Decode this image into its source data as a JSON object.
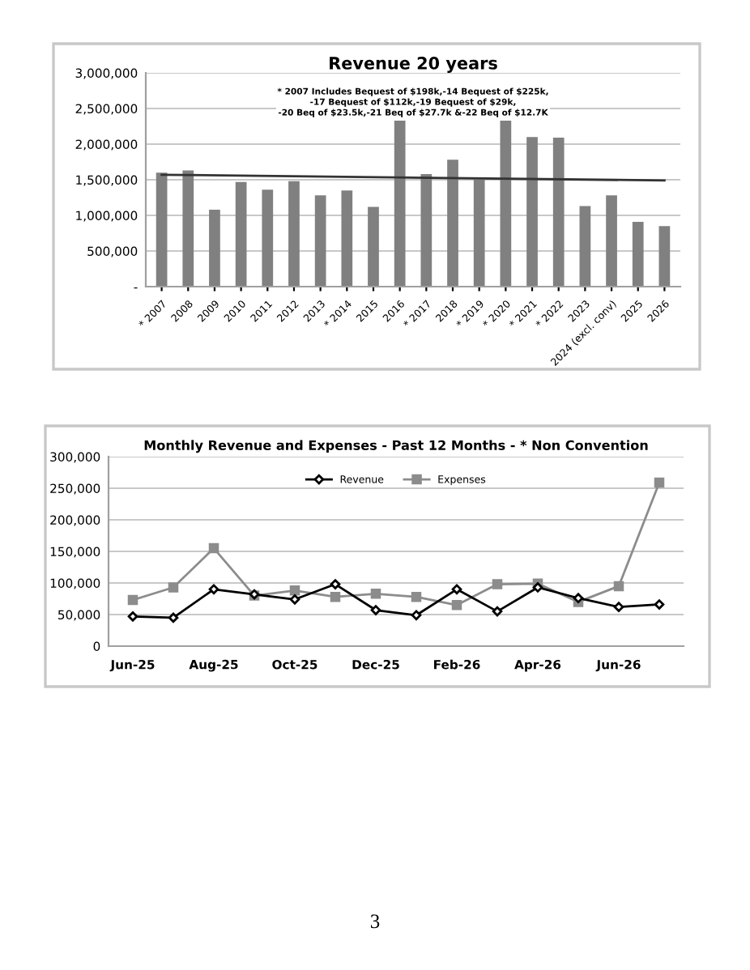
{
  "chart_data": [
    {
      "type": "bar",
      "title": "Revenue 20 years",
      "annotations": [
        "* 2007 Includes Bequest of $198k,-14 Bequest of $225k,\n-17 Bequest of $112k,-19 Bequest of $29k,\n-20 Beq of $23.5k,-21 Beq of $27.7k &-22 Beq of $12.7K"
      ],
      "categories": [
        "* 2007",
        "2008",
        "2009",
        "2010",
        "2011",
        "2012",
        "2013",
        "* 2014",
        "2015",
        "2016",
        "* 2017",
        "2018",
        "* 2019",
        "* 2020",
        "* 2021",
        "* 2022",
        "2023",
        "2024 (excl. conv)",
        "2025",
        "2026"
      ],
      "series": [
        {
          "type": "bar",
          "color": "#808080",
          "values": [
            1600000,
            1630000,
            1080000,
            1470000,
            1360000,
            1480000,
            1280000,
            1350000,
            1120000,
            2330000,
            1580000,
            1780000,
            1500000,
            2330000,
            2100000,
            2090000,
            1130000,
            1280000,
            910000,
            850000
          ]
        },
        {
          "type": "line",
          "color": "#333333",
          "values": [
            1570000,
            null,
            null,
            null,
            null,
            null,
            null,
            null,
            null,
            null,
            null,
            null,
            null,
            null,
            null,
            null,
            null,
            null,
            null,
            1490000
          ]
        }
      ],
      "ylim": [
        0,
        3000000
      ],
      "yticks": [
        {
          "value": 0,
          "label": "-"
        },
        {
          "value": 500000,
          "label": "500,000"
        },
        {
          "value": 1000000,
          "label": "1,000,000"
        },
        {
          "value": 1500000,
          "label": "1,500,000"
        },
        {
          "value": 2000000,
          "label": "2,000,000"
        },
        {
          "value": 2500000,
          "label": "2,500,000"
        },
        {
          "value": 3000000,
          "label": "3,000,000"
        }
      ],
      "grid": "y",
      "legend": false
    },
    {
      "type": "line",
      "title": "Monthly Revenue and Expenses - Past 12 Months - * Non Convention",
      "annotations": [
        "3"
      ],
      "categories": [
        "Jun-25",
        null,
        "Aug-25",
        null,
        "Oct-25",
        null,
        "Dec-25",
        null,
        "Feb-26",
        null,
        "Apr-26",
        null,
        "Jun-26",
        null
      ],
      "series": [
        {
          "name": "Revenue",
          "color": "#000000",
          "marker": "diamond",
          "values": [
            47000,
            45000,
            90000,
            82000,
            74000,
            98000,
            57000,
            49000,
            90000,
            55000,
            93000,
            76000,
            62000,
            66000
          ]
        },
        {
          "name": "Expenses",
          "color": "#8c8c8c",
          "marker": "square",
          "values": [
            73000,
            93000,
            155000,
            80000,
            88000,
            78000,
            83000,
            78000,
            65000,
            98000,
            99000,
            70000,
            95000,
            259000
          ]
        }
      ],
      "ylim": [
        0,
        300000
      ],
      "yticks": [
        {
          "value": 0,
          "label": "0"
        },
        {
          "value": 50000,
          "label": "50,000"
        },
        {
          "value": 100000,
          "label": "100,000"
        },
        {
          "value": 150000,
          "label": "150,000"
        },
        {
          "value": 200000,
          "label": "200,000"
        },
        {
          "value": 250000,
          "label": "250,000"
        },
        {
          "value": 300000,
          "label": "300,000"
        }
      ],
      "grid": "y",
      "legend": "top",
      "line_style": "solid"
    }
  ]
}
